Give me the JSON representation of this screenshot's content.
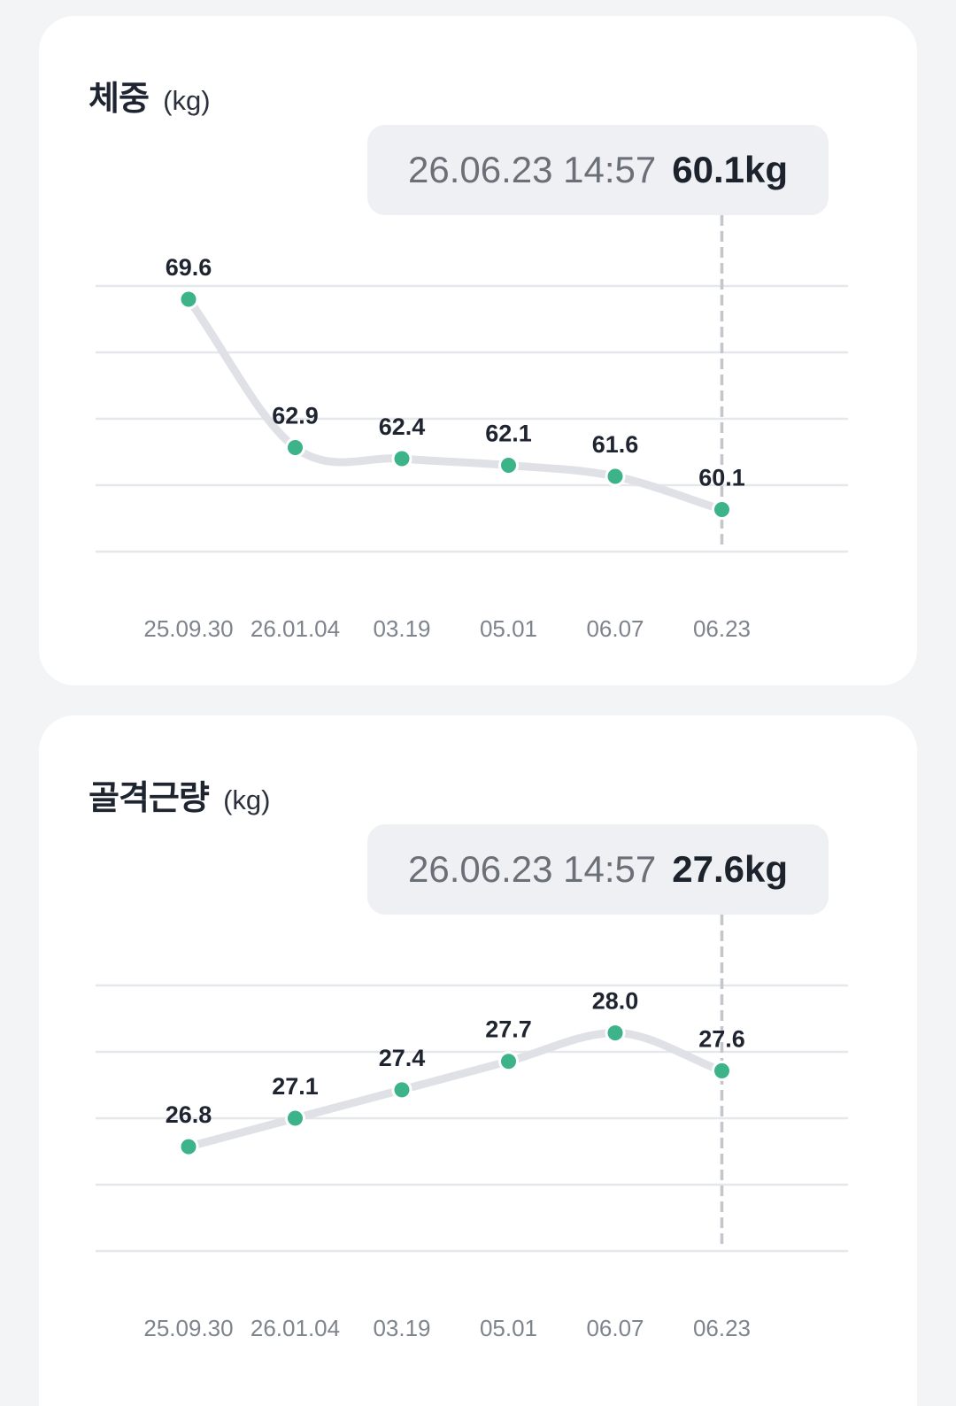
{
  "colors": {
    "point": "#3db38a",
    "line": "#dfe1e6",
    "grid": "#e6e7ea",
    "cursor": "#c3c6cc"
  },
  "chart_data": [
    {
      "type": "line",
      "title": "체중",
      "unit": "(kg)",
      "tooltip": {
        "date": "26.06.23 14:57",
        "value": "60.1kg"
      },
      "categories": [
        "25.09.30",
        "26.01.04",
        "03.19",
        "05.01",
        "06.07",
        "06.23"
      ],
      "values": [
        69.6,
        62.9,
        62.4,
        62.1,
        61.6,
        60.1
      ],
      "value_labels": [
        "69.6",
        "62.9",
        "62.4",
        "62.1",
        "61.6",
        "60.1"
      ],
      "ylim": [
        58.2,
        70.2
      ],
      "grid": true,
      "selected_index": 5
    },
    {
      "type": "line",
      "title": "골격근량",
      "unit": "(kg)",
      "tooltip": {
        "date": "26.06.23 14:57",
        "value": "27.6kg"
      },
      "categories": [
        "25.09.30",
        "26.01.04",
        "03.19",
        "05.01",
        "06.07",
        "06.23"
      ],
      "values": [
        26.8,
        27.1,
        27.4,
        27.7,
        28.0,
        27.6
      ],
      "value_labels": [
        "26.8",
        "27.1",
        "27.4",
        "27.7",
        "28.0",
        "27.6"
      ],
      "ylim": [
        25.7,
        28.5
      ],
      "grid": true,
      "selected_index": 5
    }
  ]
}
